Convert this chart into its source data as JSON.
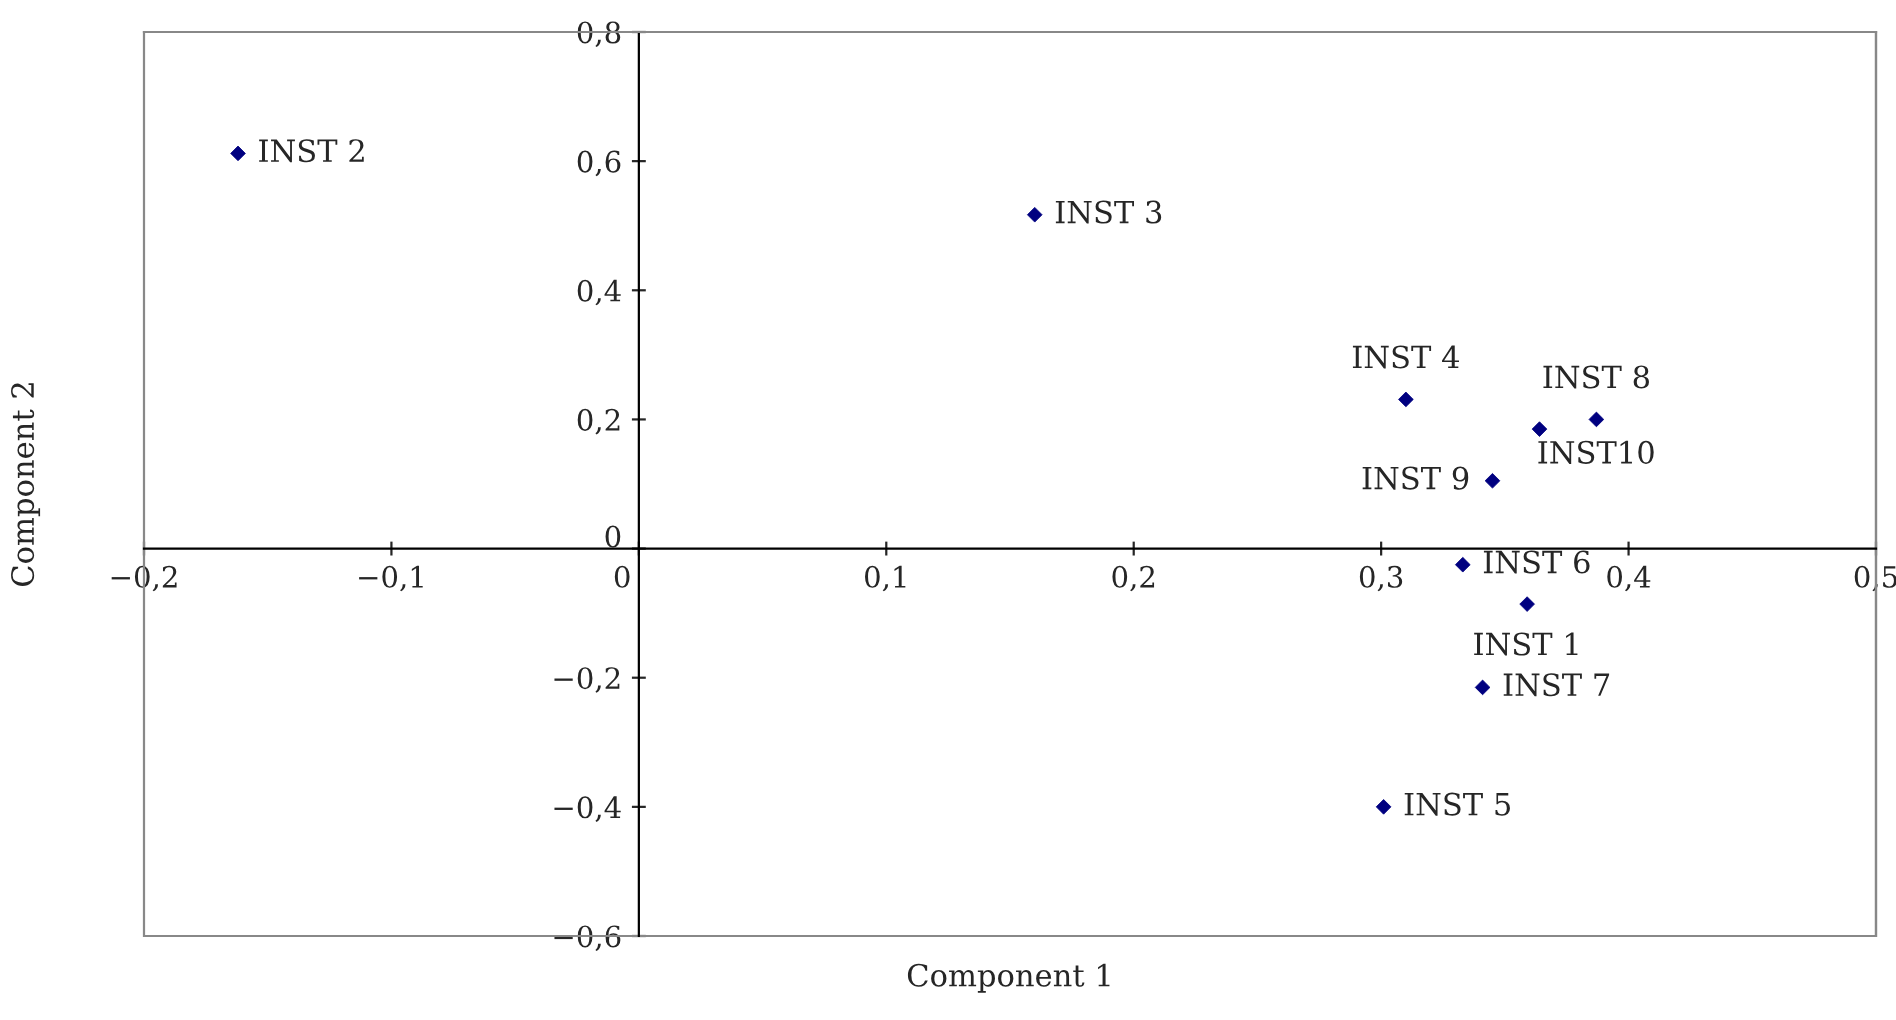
{
  "chart_data": {
    "type": "scatter",
    "xlabel": "Component 1",
    "ylabel": "Component 2",
    "marker": "diamond",
    "legend": false,
    "grid": false,
    "xlim": [
      -0.2,
      0.5
    ],
    "ylim": [
      -0.6,
      0.8
    ],
    "xticks": [
      {
        "value": -0.2,
        "label": "−0,2"
      },
      {
        "value": -0.1,
        "label": "−0,1"
      },
      {
        "value": 0,
        "label": "0"
      },
      {
        "value": 0.1,
        "label": "0,1"
      },
      {
        "value": 0.2,
        "label": "0,2"
      },
      {
        "value": 0.3,
        "label": "0,3"
      },
      {
        "value": 0.4,
        "label": "0,4"
      },
      {
        "value": 0.5,
        "label": "0,5"
      }
    ],
    "yticks": [
      {
        "value": -0.6,
        "label": "−0,6"
      },
      {
        "value": -0.4,
        "label": "−0,4"
      },
      {
        "value": -0.2,
        "label": "−0,2"
      },
      {
        "value": 0,
        "label": "0"
      },
      {
        "value": 0.2,
        "label": "0,2"
      },
      {
        "value": 0.4,
        "label": "0,4"
      },
      {
        "value": 0.6,
        "label": "0,6"
      },
      {
        "value": 0.8,
        "label": "0,8"
      }
    ],
    "series": [
      {
        "name": "INST 1",
        "color": "#000080",
        "x": [
          0.359
        ],
        "values": [
          -0.086
        ]
      },
      {
        "name": "INST 2",
        "color": "#000080",
        "x": [
          -0.162
        ],
        "values": [
          0.612
        ]
      },
      {
        "name": "INST 3",
        "color": "#000080",
        "x": [
          0.16
        ],
        "values": [
          0.517
        ]
      },
      {
        "name": "INST 4",
        "color": "#000080",
        "x": [
          0.31
        ],
        "values": [
          0.231
        ]
      },
      {
        "name": "INST 5",
        "color": "#000080",
        "x": [
          0.301
        ],
        "values": [
          -0.4
        ]
      },
      {
        "name": "INST 6",
        "color": "#000080",
        "x": [
          0.333
        ],
        "values": [
          -0.025
        ]
      },
      {
        "name": "INST 7",
        "color": "#000080",
        "x": [
          0.341
        ],
        "values": [
          -0.215
        ]
      },
      {
        "name": "INST 8",
        "color": "#000080",
        "x": [
          0.387
        ],
        "values": [
          0.2
        ]
      },
      {
        "name": "INST 9",
        "color": "#000080",
        "x": [
          0.345
        ],
        "values": [
          0.105
        ]
      },
      {
        "name": "INST10",
        "color": "#000080",
        "x": [
          0.364
        ],
        "values": [
          0.185
        ]
      }
    ]
  }
}
